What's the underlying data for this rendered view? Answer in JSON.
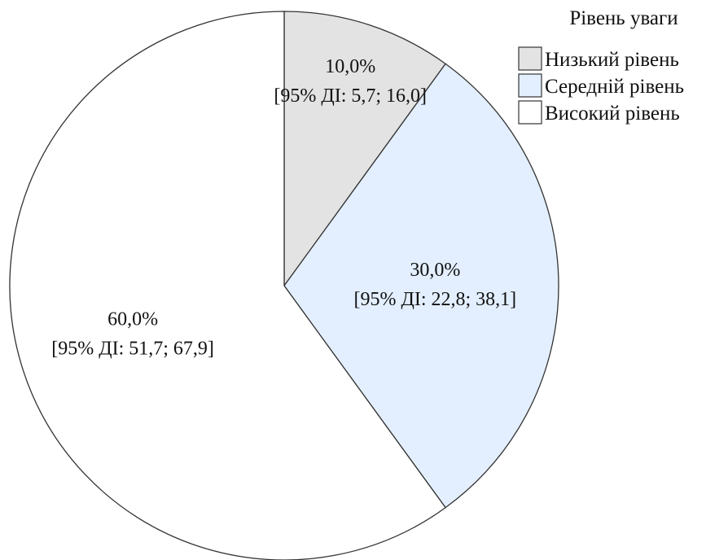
{
  "chart_data": {
    "type": "pie",
    "title": "",
    "legend": {
      "title": "Рівень уваги",
      "placement": "top-right"
    },
    "slices": [
      {
        "name": "Низький рівень",
        "value": 10.0,
        "label": "10,0%",
        "ci_label": "[95% ДІ: 5,7; 16,0]",
        "color": "#e3e3e3"
      },
      {
        "name": "Середній рівень",
        "value": 30.0,
        "label": "30,0%",
        "ci_label": "[95% ДІ: 22,8; 38,1]",
        "color": "#e3efff"
      },
      {
        "name": "Високий рівень",
        "value": 60.0,
        "label": "60,0%",
        "ci_label": "[95% ДІ: 51,7; 67,9]",
        "color": "#ffffff"
      }
    ]
  }
}
